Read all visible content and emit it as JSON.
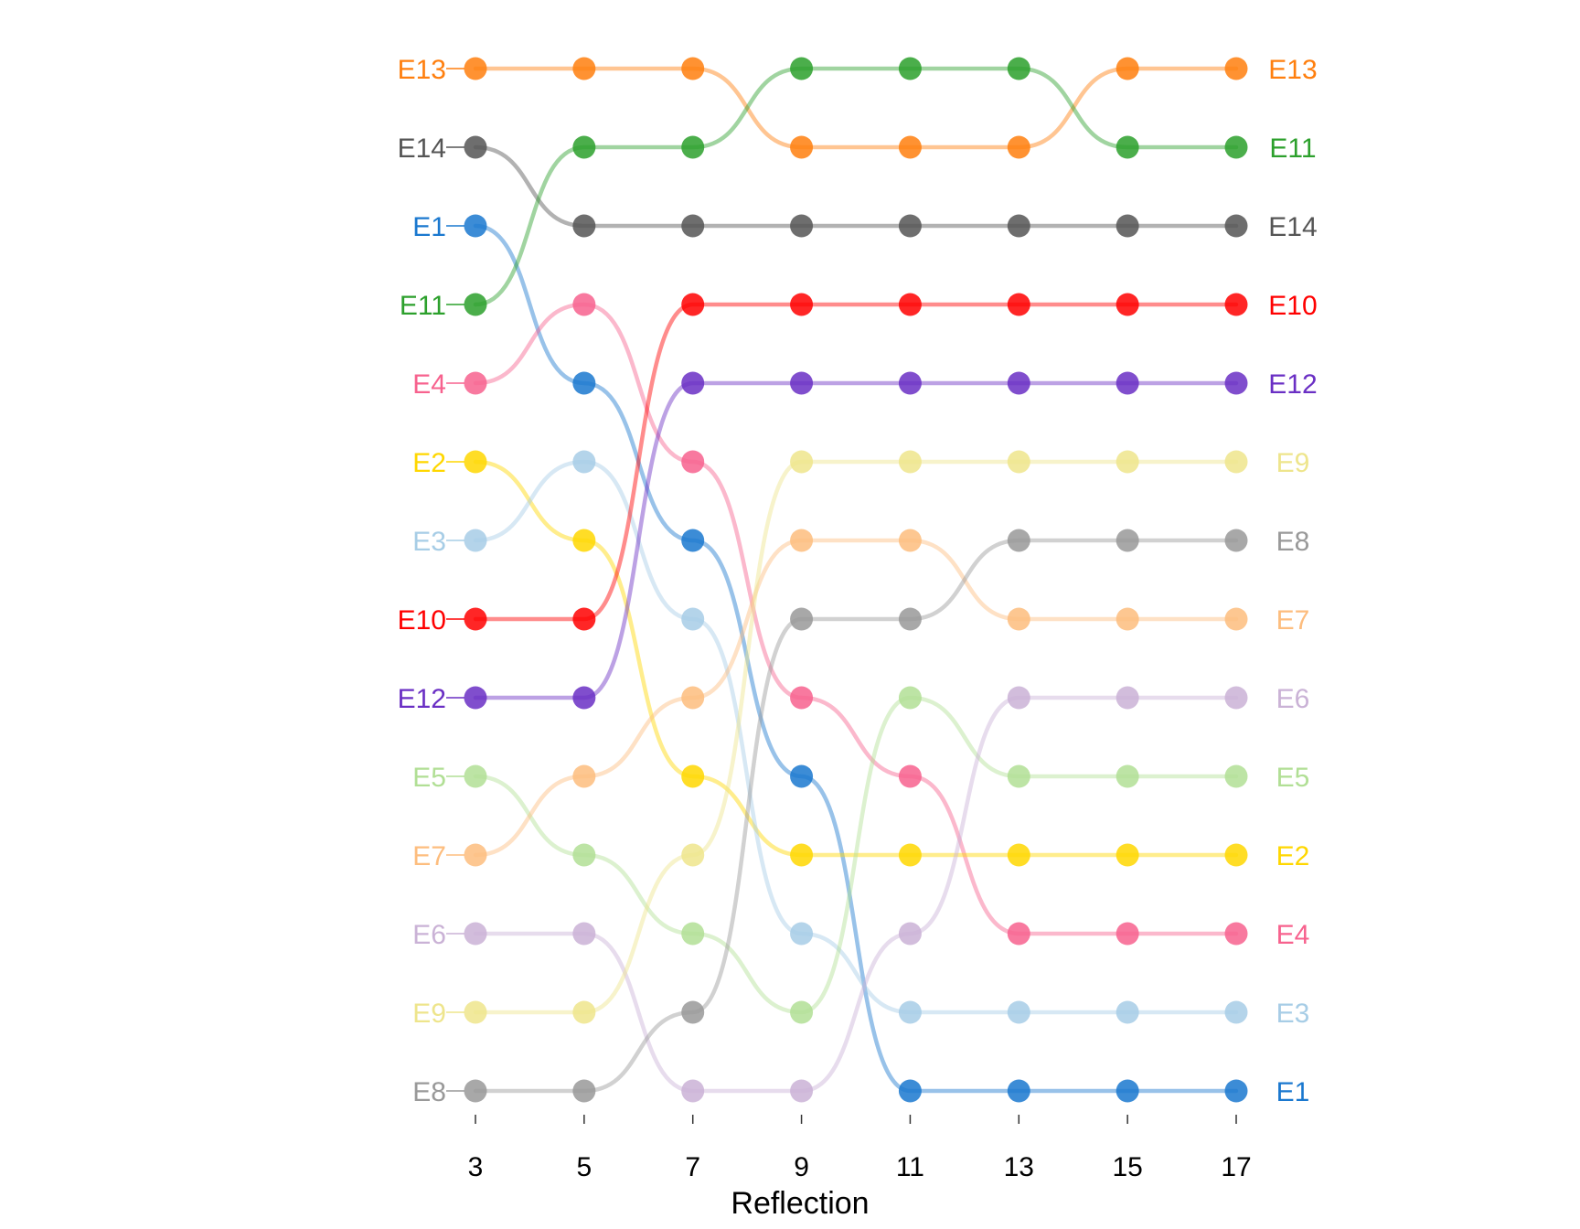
{
  "chart_data": {
    "type": "line",
    "subtype": "bump-chart (rank over x)",
    "title": "",
    "xlabel": "Reflection",
    "ylabel": "",
    "x": [
      3,
      5,
      7,
      9,
      11,
      13,
      15,
      17
    ],
    "rank_order": "1 = top",
    "grid": false,
    "legend": "none (series labels at both ends of each line)",
    "series": [
      {
        "name": "E13",
        "color": "#ff7f0e",
        "ranks": [
          1,
          1,
          1,
          2,
          2,
          2,
          1,
          1
        ]
      },
      {
        "name": "E14",
        "color": "#555555",
        "ranks": [
          2,
          3,
          3,
          3,
          3,
          3,
          3,
          3
        ]
      },
      {
        "name": "E1",
        "color": "#1a78cf",
        "ranks": [
          3,
          5,
          7,
          10,
          14,
          14,
          14,
          14
        ]
      },
      {
        "name": "E11",
        "color": "#2ca02c",
        "ranks": [
          4,
          2,
          2,
          1,
          1,
          1,
          2,
          2
        ]
      },
      {
        "name": "E4",
        "color": "#f7628e",
        "ranks": [
          5,
          4,
          6,
          9,
          10,
          12,
          12,
          12
        ]
      },
      {
        "name": "E2",
        "color": "#ffd700",
        "ranks": [
          6,
          7,
          10,
          11,
          11,
          11,
          11,
          11
        ]
      },
      {
        "name": "E3",
        "color": "#a7cde6",
        "ranks": [
          7,
          6,
          8,
          12,
          13,
          13,
          13,
          13
        ]
      },
      {
        "name": "E10",
        "color": "#ff0000",
        "ranks": [
          8,
          8,
          4,
          4,
          4,
          4,
          4,
          4
        ]
      },
      {
        "name": "E12",
        "color": "#6a2fc4",
        "ranks": [
          9,
          9,
          5,
          5,
          5,
          5,
          5,
          5
        ]
      },
      {
        "name": "E5",
        "color": "#b1df95",
        "ranks": [
          10,
          11,
          12,
          13,
          9,
          10,
          10,
          10
        ]
      },
      {
        "name": "E7",
        "color": "#fdbd7e",
        "ranks": [
          11,
          10,
          9,
          7,
          7,
          8,
          8,
          8
        ]
      },
      {
        "name": "E6",
        "color": "#cab2d6",
        "ranks": [
          12,
          12,
          14,
          14,
          12,
          9,
          9,
          9
        ]
      },
      {
        "name": "E9",
        "color": "#eee58c",
        "ranks": [
          13,
          13,
          11,
          6,
          6,
          6,
          6,
          6
        ]
      },
      {
        "name": "E8",
        "color": "#999999",
        "ranks": [
          14,
          14,
          13,
          8,
          8,
          7,
          7,
          7
        ]
      }
    ]
  }
}
